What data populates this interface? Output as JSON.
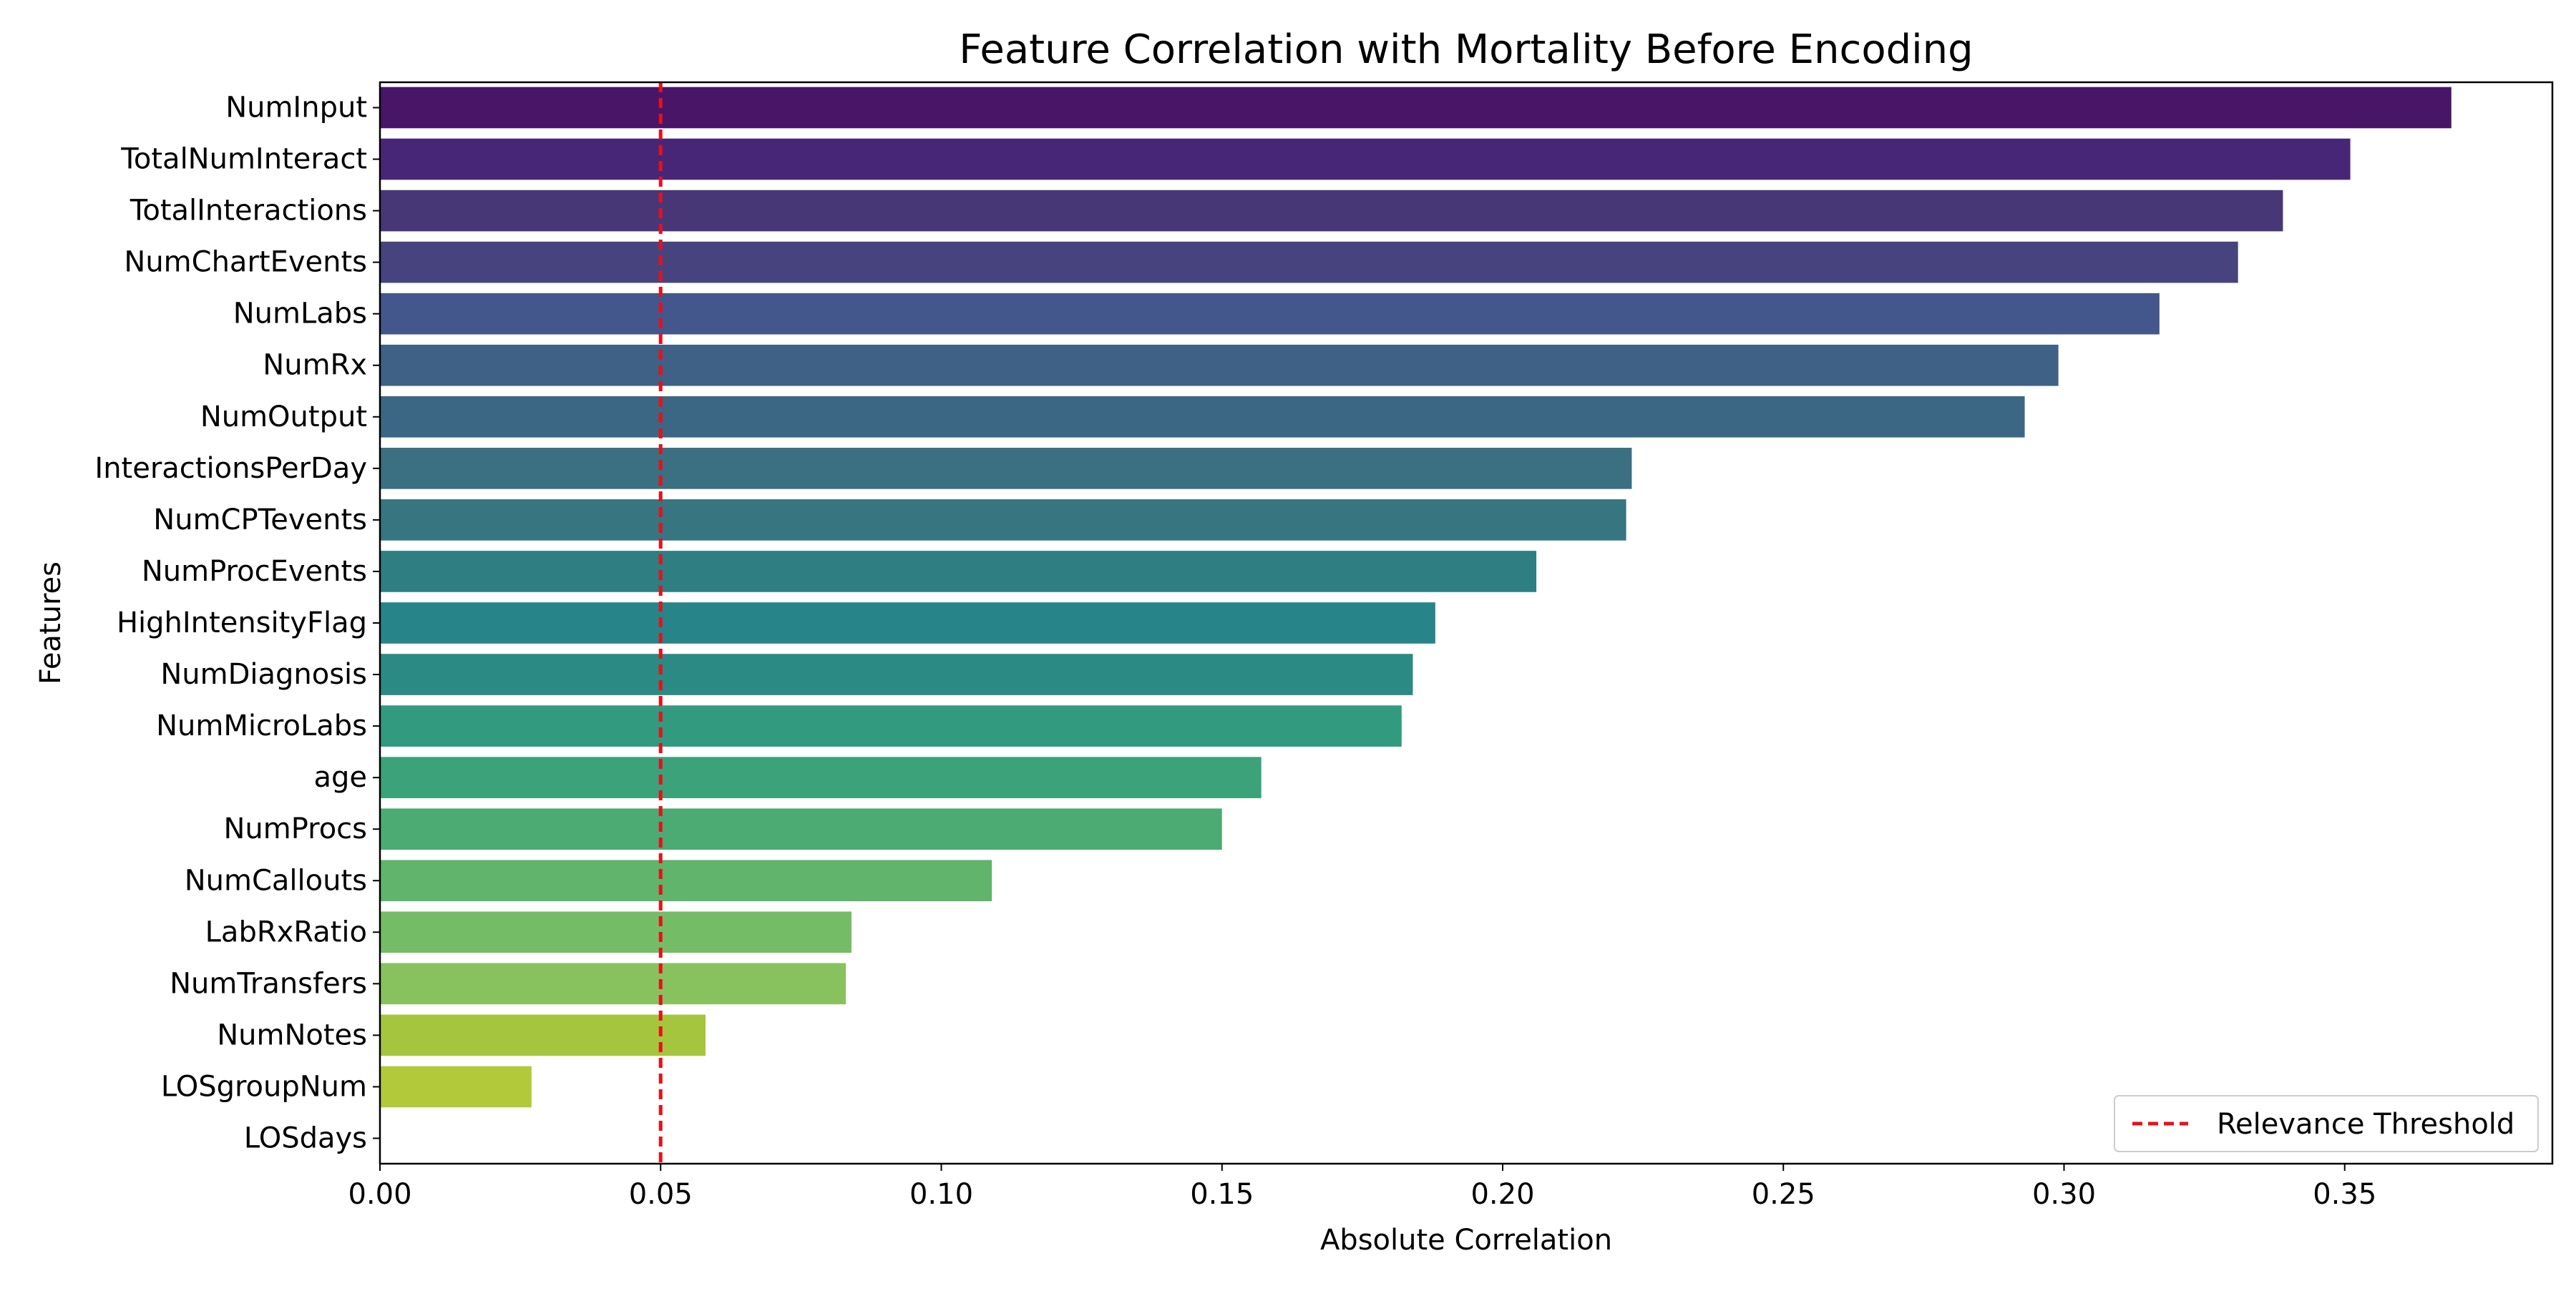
{
  "chart_data": {
    "type": "bar",
    "orientation": "horizontal",
    "title": "Feature Correlation with Mortality Before Encoding",
    "xlabel": "Absolute Correlation",
    "ylabel": "Features",
    "xlim": [
      0,
      0.387
    ],
    "xticks": [
      "0.00",
      "0.05",
      "0.10",
      "0.15",
      "0.20",
      "0.25",
      "0.30",
      "0.35"
    ],
    "grid": false,
    "legend_position": "bottom-right",
    "colormap": "viridis",
    "categories": [
      "NumInput",
      "TotalNumInteract",
      "TotalInteractions",
      "NumChartEvents",
      "NumLabs",
      "NumRx",
      "NumOutput",
      "InteractionsPerDay",
      "NumCPTevents",
      "NumProcEvents",
      "HighIntensityFlag",
      "NumDiagnosis",
      "NumMicroLabs",
      "age",
      "NumProcs",
      "NumCallouts",
      "LabRxRatio",
      "NumTransfers",
      "NumNotes",
      "LOSgroupNum",
      "LOSdays"
    ],
    "values": [
      0.369,
      0.351,
      0.339,
      0.331,
      0.317,
      0.299,
      0.293,
      0.223,
      0.222,
      0.206,
      0.188,
      0.184,
      0.182,
      0.157,
      0.15,
      0.109,
      0.084,
      0.083,
      0.058,
      0.027,
      0.0
    ],
    "colors": [
      "#481567",
      "#482677",
      "#483777",
      "#46437f",
      "#44578c",
      "#3e6185",
      "#3b6784",
      "#3a7081",
      "#377580",
      "#2e7e82",
      "#27858a",
      "#2b8a84",
      "#319a7f",
      "#3ba27a",
      "#4bab73",
      "#60b46b",
      "#74bd66",
      "#88c25e",
      "#a6c53e",
      "#b2c93a",
      "#c8d43a"
    ],
    "reference_lines": [
      {
        "type": "vertical",
        "x": 0.05,
        "label": "Relevance Threshold",
        "color": "#e8101a",
        "style": "dashed"
      }
    ]
  }
}
